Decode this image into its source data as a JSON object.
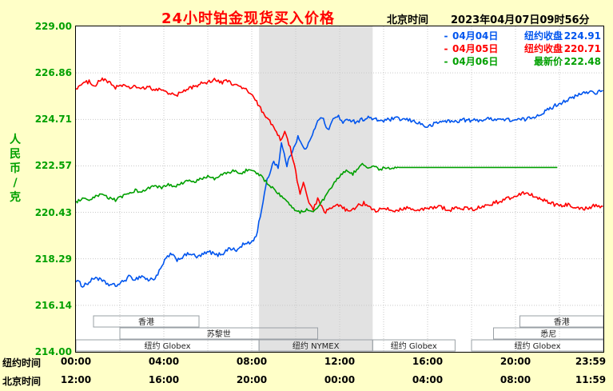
{
  "header": {
    "title": "24小时铂金现货买入价格",
    "clock_label": "北京时间",
    "datetime": "2023年04月07日09时56分"
  },
  "y_axis": {
    "unit_vertical": "人民币/克"
  },
  "x_axis": {
    "row1_label": "纽约时间",
    "row2_label": "北京时间"
  },
  "legend": [
    {
      "dash": "-",
      "date": "04月04日",
      "label": "纽约收盘",
      "value": "224.91",
      "color": "#0055ee"
    },
    {
      "dash": "-",
      "date": "04月05日",
      "label": "纽约收盘",
      "value": "220.71",
      "color": "#ff0000"
    },
    {
      "dash": "-",
      "date": "04月06日",
      "label": "最新价",
      "value": "222.48",
      "color": "#00a000"
    }
  ],
  "chart_data": {
    "type": "line",
    "title": "24小时铂金现货买入价格 (RMB/gram)",
    "ylabel": "人民币/克",
    "ylim": [
      214.0,
      229.0
    ],
    "yticks": [
      "229.00",
      "226.86",
      "224.71",
      "222.57",
      "220.43",
      "218.29",
      "216.14",
      "214.00"
    ],
    "x_hours_range": [
      0,
      24
    ],
    "xticks_newyork": [
      "00:00",
      "04:00",
      "08:00",
      "12:00",
      "16:00",
      "20:00",
      "23:59"
    ],
    "xticks_beijing": [
      "12:00",
      "16:00",
      "20:00",
      "00:00",
      "04:00",
      "08:00",
      "11:59"
    ],
    "grid": "dotted",
    "highlight_band_hours": [
      8.33,
      13.5
    ],
    "band_color": "#e2e2e2",
    "sessions": [
      {
        "row": 1,
        "label": "香港",
        "t": [
          0.8,
          5.6
        ]
      },
      {
        "row": 1,
        "label": "香港",
        "t": [
          20.2,
          24
        ]
      },
      {
        "row": 2,
        "label": "苏黎世",
        "t": [
          2.0,
          11.0
        ]
      },
      {
        "row": 2,
        "label": "悉尼",
        "t": [
          19.0,
          24
        ]
      },
      {
        "row": 3,
        "label": "纽约 Globex",
        "t": [
          0,
          8.33
        ]
      },
      {
        "row": 3,
        "label": "纽约 NYMEX",
        "t": [
          8.33,
          13.5
        ]
      },
      {
        "row": 3,
        "label": "纽约 Globex",
        "t": [
          13.5,
          17.25
        ]
      },
      {
        "row": 3,
        "label": "纽约 Globex",
        "t": [
          18.0,
          24
        ]
      }
    ],
    "series": [
      {
        "name": "04月04日 纽约收盘 224.91",
        "color": "#0055ee",
        "jitter": 0.09,
        "points": [
          [
            0,
            217.3
          ],
          [
            0.3,
            217.05
          ],
          [
            0.6,
            217.2
          ],
          [
            0.9,
            217.45
          ],
          [
            1.2,
            217.25
          ],
          [
            1.5,
            217.1
          ],
          [
            1.8,
            217.05
          ],
          [
            2.1,
            217.2
          ],
          [
            2.4,
            217.45
          ],
          [
            2.7,
            217.35
          ],
          [
            3.0,
            217.5
          ],
          [
            3.3,
            217.3
          ],
          [
            3.6,
            217.4
          ],
          [
            3.85,
            217.8
          ],
          [
            4.1,
            218.3
          ],
          [
            4.3,
            218.5
          ],
          [
            4.6,
            218.25
          ],
          [
            4.9,
            218.4
          ],
          [
            5.2,
            218.55
          ],
          [
            5.5,
            218.35
          ],
          [
            5.8,
            218.5
          ],
          [
            6.1,
            218.6
          ],
          [
            6.4,
            218.45
          ],
          [
            6.7,
            218.55
          ],
          [
            7.0,
            218.8
          ],
          [
            7.3,
            218.65
          ],
          [
            7.6,
            218.95
          ],
          [
            7.9,
            219.0
          ],
          [
            8.2,
            219.3
          ],
          [
            8.45,
            220.6
          ],
          [
            8.7,
            221.9
          ],
          [
            9.0,
            222.8
          ],
          [
            9.2,
            222.5
          ],
          [
            9.35,
            223.6
          ],
          [
            9.6,
            222.6
          ],
          [
            9.85,
            223.3
          ],
          [
            10.1,
            223.9
          ],
          [
            10.4,
            223.3
          ],
          [
            10.7,
            223.8
          ],
          [
            11.0,
            224.7
          ],
          [
            11.2,
            224.85
          ],
          [
            11.45,
            224.2
          ],
          [
            11.7,
            224.7
          ],
          [
            11.95,
            224.9
          ],
          [
            12.15,
            224.5
          ],
          [
            12.4,
            224.75
          ],
          [
            12.7,
            224.6
          ],
          [
            13.0,
            224.7
          ],
          [
            13.3,
            224.8
          ],
          [
            13.6,
            224.7
          ],
          [
            14.0,
            224.65
          ],
          [
            14.5,
            224.75
          ],
          [
            15.0,
            224.7
          ],
          [
            15.5,
            224.6
          ],
          [
            16.0,
            224.35
          ],
          [
            16.4,
            224.55
          ],
          [
            16.8,
            224.65
          ],
          [
            17.2,
            224.6
          ],
          [
            17.6,
            224.7
          ],
          [
            18.0,
            224.65
          ],
          [
            18.5,
            224.7
          ],
          [
            19.0,
            224.75
          ],
          [
            19.5,
            224.7
          ],
          [
            20.0,
            224.68
          ],
          [
            20.5,
            224.72
          ],
          [
            21.0,
            224.9
          ],
          [
            21.4,
            225.1
          ],
          [
            21.8,
            225.35
          ],
          [
            22.2,
            225.55
          ],
          [
            22.6,
            225.7
          ],
          [
            23.0,
            225.9
          ],
          [
            23.4,
            226.0
          ],
          [
            23.7,
            225.95
          ],
          [
            23.98,
            226.05
          ]
        ]
      },
      {
        "name": "04月05日 纽约收盘 220.71",
        "color": "#ff0000",
        "jitter": 0.09,
        "points": [
          [
            0,
            226.15
          ],
          [
            0.3,
            226.35
          ],
          [
            0.6,
            226.45
          ],
          [
            0.9,
            226.3
          ],
          [
            1.2,
            226.6
          ],
          [
            1.5,
            226.4
          ],
          [
            1.8,
            226.2
          ],
          [
            2.1,
            226.3
          ],
          [
            2.4,
            226.15
          ],
          [
            2.7,
            226.25
          ],
          [
            3.0,
            226.1
          ],
          [
            3.3,
            226.2
          ],
          [
            3.6,
            226.05
          ],
          [
            3.9,
            226.1
          ],
          [
            4.2,
            225.95
          ],
          [
            4.5,
            225.8
          ],
          [
            4.8,
            225.95
          ],
          [
            5.1,
            226.1
          ],
          [
            5.4,
            226.25
          ],
          [
            5.7,
            226.35
          ],
          [
            6.0,
            226.45
          ],
          [
            6.3,
            226.55
          ],
          [
            6.6,
            226.4
          ],
          [
            6.9,
            226.5
          ],
          [
            7.2,
            226.3
          ],
          [
            7.5,
            226.2
          ],
          [
            7.8,
            226.05
          ],
          [
            8.1,
            225.7
          ],
          [
            8.4,
            225.2
          ],
          [
            8.7,
            224.8
          ],
          [
            9.0,
            224.3
          ],
          [
            9.3,
            223.8
          ],
          [
            9.5,
            224.1
          ],
          [
            9.75,
            223.4
          ],
          [
            10.0,
            222.3
          ],
          [
            10.2,
            221.2
          ],
          [
            10.35,
            221.9
          ],
          [
            10.6,
            220.8
          ],
          [
            10.8,
            220.5
          ],
          [
            11.0,
            221.1
          ],
          [
            11.3,
            220.4
          ],
          [
            11.6,
            220.6
          ],
          [
            11.9,
            220.75
          ],
          [
            12.2,
            220.6
          ],
          [
            12.5,
            220.45
          ],
          [
            12.8,
            220.7
          ],
          [
            13.1,
            220.85
          ],
          [
            13.4,
            220.6
          ],
          [
            13.7,
            220.5
          ],
          [
            14.0,
            220.6
          ],
          [
            14.5,
            220.5
          ],
          [
            15.0,
            220.65
          ],
          [
            15.5,
            220.5
          ],
          [
            16.0,
            220.6
          ],
          [
            16.5,
            220.7
          ],
          [
            17.0,
            220.55
          ],
          [
            17.5,
            220.65
          ],
          [
            18.0,
            220.55
          ],
          [
            18.5,
            220.7
          ],
          [
            19.0,
            220.85
          ],
          [
            19.5,
            221.0
          ],
          [
            20.0,
            221.2
          ],
          [
            20.4,
            221.35
          ],
          [
            20.8,
            221.2
          ],
          [
            21.2,
            221.0
          ],
          [
            21.6,
            220.85
          ],
          [
            22.0,
            220.7
          ],
          [
            22.4,
            220.8
          ],
          [
            22.8,
            220.65
          ],
          [
            23.2,
            220.6
          ],
          [
            23.6,
            220.75
          ],
          [
            23.98,
            220.7
          ]
        ]
      },
      {
        "name": "04月06日 最新价 222.48",
        "color": "#00a000",
        "jitter": 0.07,
        "points": [
          [
            0,
            220.9
          ],
          [
            0.3,
            221.05
          ],
          [
            0.6,
            220.95
          ],
          [
            0.9,
            221.15
          ],
          [
            1.2,
            221.25
          ],
          [
            1.5,
            221.1
          ],
          [
            1.8,
            221.0
          ],
          [
            2.1,
            221.15
          ],
          [
            2.4,
            221.3
          ],
          [
            2.7,
            221.45
          ],
          [
            3.0,
            221.35
          ],
          [
            3.3,
            221.55
          ],
          [
            3.6,
            221.65
          ],
          [
            3.9,
            221.55
          ],
          [
            4.2,
            221.7
          ],
          [
            4.5,
            221.6
          ],
          [
            4.8,
            221.75
          ],
          [
            5.1,
            221.9
          ],
          [
            5.4,
            221.8
          ],
          [
            5.7,
            222.0
          ],
          [
            6.0,
            222.1
          ],
          [
            6.3,
            221.95
          ],
          [
            6.6,
            222.15
          ],
          [
            6.9,
            222.25
          ],
          [
            7.2,
            222.35
          ],
          [
            7.5,
            222.2
          ],
          [
            7.8,
            222.4
          ],
          [
            8.1,
            222.3
          ],
          [
            8.4,
            222.1
          ],
          [
            8.7,
            221.8
          ],
          [
            9.0,
            221.5
          ],
          [
            9.3,
            221.2
          ],
          [
            9.6,
            220.9
          ],
          [
            9.9,
            220.6
          ],
          [
            10.2,
            220.45
          ],
          [
            10.5,
            220.55
          ],
          [
            10.8,
            220.5
          ],
          [
            11.1,
            220.8
          ],
          [
            11.4,
            221.2
          ],
          [
            11.7,
            221.7
          ],
          [
            12.0,
            222.1
          ],
          [
            12.3,
            222.35
          ],
          [
            12.6,
            222.2
          ],
          [
            12.9,
            222.55
          ],
          [
            13.1,
            222.65
          ],
          [
            13.35,
            222.45
          ],
          [
            13.6,
            222.55
          ],
          [
            13.85,
            222.4
          ],
          [
            14.1,
            222.5
          ],
          [
            14.4,
            222.45
          ],
          [
            14.7,
            222.5
          ],
          [
            15.0,
            222.5
          ],
          [
            21.9,
            222.5
          ]
        ]
      }
    ]
  }
}
